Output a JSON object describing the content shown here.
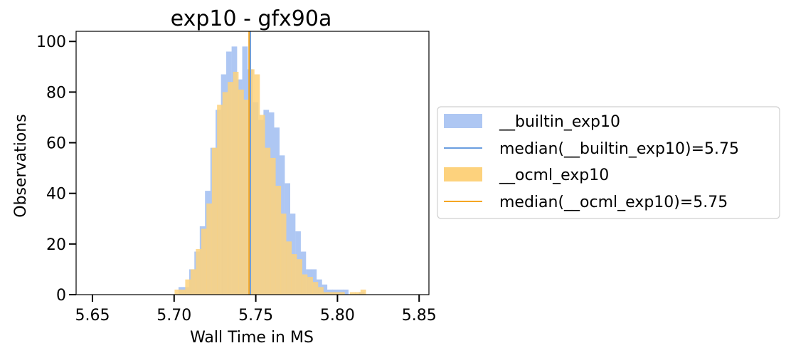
{
  "chart_data": {
    "type": "histogram",
    "title": "exp10 - gfx90a",
    "xlabel": "Wall Time in MS",
    "ylabel": "Observations",
    "xlim": [
      5.64,
      5.856
    ],
    "ylim": [
      0,
      104
    ],
    "xticks": [
      5.65,
      5.7,
      5.75,
      5.8,
      5.85
    ],
    "xtick_labels": [
      "5.65",
      "5.70",
      "5.75",
      "5.80",
      "5.85"
    ],
    "yticks": [
      0,
      20,
      40,
      60,
      80,
      100
    ],
    "ytick_labels": [
      "0",
      "20",
      "40",
      "60",
      "80",
      "100"
    ],
    "bin_width": 0.00325,
    "grid": false,
    "legend_position": "outside-right",
    "series": [
      {
        "name": "__builtin_exp10",
        "color": "#aec7f3",
        "median_color": "#6a9ee0",
        "median": 5.7467,
        "bins": [
          [
            5.7027,
            3
          ],
          [
            5.7059,
            3
          ],
          [
            5.7092,
            10
          ],
          [
            5.7124,
            17
          ],
          [
            5.7157,
            27
          ],
          [
            5.7189,
            41
          ],
          [
            5.7222,
            58
          ],
          [
            5.7254,
            73
          ],
          [
            5.7287,
            87
          ],
          [
            5.7319,
            96
          ],
          [
            5.7352,
            98
          ],
          [
            5.7384,
            85
          ],
          [
            5.7417,
            98
          ],
          [
            5.7449,
            89
          ],
          [
            5.7482,
            76
          ],
          [
            5.7514,
            69
          ],
          [
            5.7547,
            73
          ],
          [
            5.7579,
            72
          ],
          [
            5.7612,
            66
          ],
          [
            5.7644,
            55
          ],
          [
            5.7677,
            44
          ],
          [
            5.7709,
            32
          ],
          [
            5.7742,
            25
          ],
          [
            5.7774,
            17
          ],
          [
            5.7807,
            10
          ],
          [
            5.7839,
            10
          ],
          [
            5.7872,
            6
          ],
          [
            5.7904,
            4
          ],
          [
            5.7937,
            2
          ],
          [
            5.7969,
            2
          ],
          [
            5.8002,
            2
          ],
          [
            5.8034,
            2
          ],
          [
            5.8067,
            0
          ],
          [
            5.8099,
            0
          ],
          [
            5.8132,
            1
          ]
        ]
      },
      {
        "name": "__ocml_exp10",
        "color": "#fdd27d",
        "median_color": "#f5a623",
        "median": 5.7459,
        "bins": [
          [
            5.7003,
            2
          ],
          [
            5.7036,
            2
          ],
          [
            5.7068,
            6
          ],
          [
            5.7101,
            10
          ],
          [
            5.7133,
            18
          ],
          [
            5.7166,
            26
          ],
          [
            5.7198,
            36
          ],
          [
            5.7231,
            58
          ],
          [
            5.7263,
            75
          ],
          [
            5.7296,
            80
          ],
          [
            5.7328,
            84
          ],
          [
            5.7361,
            88
          ],
          [
            5.7393,
            81
          ],
          [
            5.7426,
            77
          ],
          [
            5.7458,
            89
          ],
          [
            5.7491,
            87
          ],
          [
            5.7523,
            71
          ],
          [
            5.7556,
            58
          ],
          [
            5.7588,
            54
          ],
          [
            5.7621,
            43
          ],
          [
            5.7653,
            32
          ],
          [
            5.7686,
            21
          ],
          [
            5.7718,
            16
          ],
          [
            5.7751,
            14
          ],
          [
            5.7783,
            8
          ],
          [
            5.7816,
            7
          ],
          [
            5.7848,
            5
          ],
          [
            5.7881,
            3
          ],
          [
            5.7913,
            1
          ],
          [
            5.7946,
            1
          ],
          [
            5.7978,
            1
          ],
          [
            5.8011,
            1
          ],
          [
            5.8043,
            0
          ],
          [
            5.8076,
            1
          ],
          [
            5.8108,
            1
          ],
          [
            5.8141,
            2
          ]
        ]
      }
    ],
    "legend": [
      {
        "label": "__builtin_exp10",
        "kind": "patch",
        "series": 0
      },
      {
        "label": "median(__builtin_exp10)=5.75",
        "kind": "line",
        "series": 0
      },
      {
        "label": "__ocml_exp10",
        "kind": "patch",
        "series": 1
      },
      {
        "label": "median(__ocml_exp10)=5.75",
        "kind": "line",
        "series": 1
      }
    ]
  }
}
